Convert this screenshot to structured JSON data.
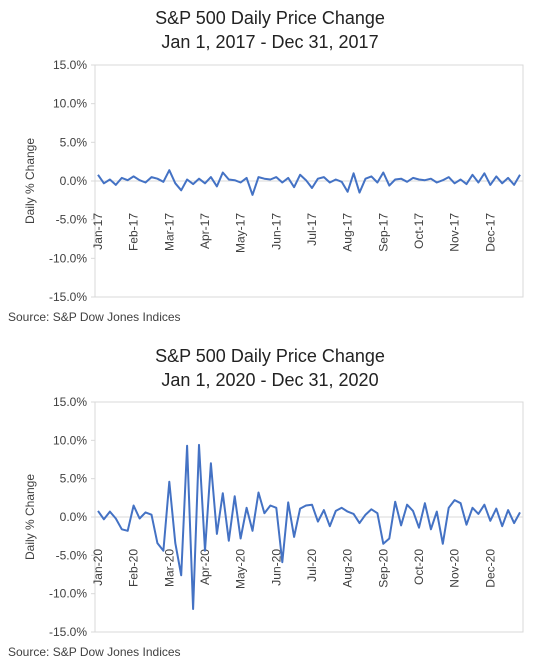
{
  "chart_data": [
    {
      "type": "line",
      "title": "S&P 500 Daily Price Change",
      "subtitle": "Jan 1, 2017 - Dec 31, 2017",
      "y_label": "Daily % Change",
      "source": "Source: S&P Dow Jones Indices",
      "categories": [
        "Jan-17",
        null,
        null,
        null,
        null,
        null,
        "Feb-17",
        null,
        null,
        null,
        null,
        null,
        "Mar-17",
        null,
        null,
        null,
        null,
        null,
        "Apr-17",
        null,
        null,
        null,
        null,
        null,
        "May-17",
        null,
        null,
        null,
        null,
        null,
        "Jun-17",
        null,
        null,
        null,
        null,
        null,
        "Jul-17",
        null,
        null,
        null,
        null,
        null,
        "Aug-17",
        null,
        null,
        null,
        null,
        null,
        "Sep-17",
        null,
        null,
        null,
        null,
        null,
        "Oct-17",
        null,
        null,
        null,
        null,
        null,
        "Nov-17",
        null,
        null,
        null,
        null,
        null,
        "Dec-17",
        null,
        null,
        null,
        null,
        null
      ],
      "series": [
        {
          "name": "Daily % Change",
          "color": "#4472c4",
          "values": [
            0.8,
            -0.3,
            0.2,
            -0.5,
            0.4,
            0.1,
            0.6,
            0.1,
            -0.2,
            0.5,
            0.3,
            -0.1,
            1.4,
            -0.3,
            -1.2,
            0.2,
            -0.4,
            0.3,
            -0.3,
            0.5,
            -0.7,
            1.1,
            0.2,
            0.1,
            -0.2,
            0.4,
            -1.8,
            0.5,
            0.3,
            0.2,
            0.5,
            -0.2,
            0.4,
            -0.8,
            0.8,
            0.1,
            -0.9,
            0.3,
            0.5,
            -0.2,
            0.2,
            -0.1,
            -1.4,
            1.0,
            -1.5,
            0.3,
            0.6,
            -0.2,
            1.1,
            -0.6,
            0.2,
            0.3,
            -0.1,
            0.4,
            0.2,
            0.1,
            0.3,
            -0.2,
            0.1,
            0.5,
            -0.3,
            0.2,
            -0.4,
            0.8,
            -0.2,
            1.0,
            -0.5,
            0.6,
            -0.3,
            0.4,
            -0.5,
            0.8
          ]
        }
      ],
      "ylim": [
        -15,
        15
      ],
      "yticks": [
        {
          "value": -15,
          "label": "-15.0%"
        },
        {
          "value": -10,
          "label": "-10.0%"
        },
        {
          "value": -5,
          "label": "-5.0%"
        },
        {
          "value": 0,
          "label": "0.0%"
        },
        {
          "value": 5,
          "label": "5.0%"
        },
        {
          "value": 10,
          "label": "10.0%"
        },
        {
          "value": 15,
          "label": "15.0%"
        }
      ]
    },
    {
      "type": "line",
      "title": "S&P 500 Daily Price Change",
      "subtitle": "Jan 1, 2020 - Dec 31, 2020",
      "y_label": "Daily % Change",
      "source": "Source: S&P Dow Jones Indices",
      "categories": [
        "Jan-20",
        null,
        null,
        null,
        null,
        null,
        "Feb-20",
        null,
        null,
        null,
        null,
        null,
        "Mar-20",
        null,
        null,
        null,
        null,
        null,
        "Apr-20",
        null,
        null,
        null,
        null,
        null,
        "May-20",
        null,
        null,
        null,
        null,
        null,
        "Jun-20",
        null,
        null,
        null,
        null,
        null,
        "Jul-20",
        null,
        null,
        null,
        null,
        null,
        "Aug-20",
        null,
        null,
        null,
        null,
        null,
        "Sep-20",
        null,
        null,
        null,
        null,
        null,
        "Oct-20",
        null,
        null,
        null,
        null,
        null,
        "Nov-20",
        null,
        null,
        null,
        null,
        null,
        "Dec-20",
        null,
        null,
        null,
        null,
        null
      ],
      "series": [
        {
          "name": "Daily % Change",
          "color": "#4472c4",
          "values": [
            0.8,
            -0.3,
            0.7,
            -0.2,
            -1.6,
            -1.8,
            1.5,
            -0.2,
            0.6,
            0.3,
            -3.4,
            -4.4,
            4.6,
            -3.4,
            -7.6,
            9.3,
            -12.0,
            9.4,
            -4.4,
            7.0,
            -2.2,
            3.1,
            -3.1,
            2.7,
            -2.8,
            1.2,
            -1.8,
            3.2,
            0.5,
            1.5,
            1.2,
            -5.9,
            1.9,
            -2.6,
            1.1,
            1.5,
            1.6,
            -0.6,
            0.9,
            -1.2,
            0.8,
            1.2,
            0.7,
            0.4,
            -0.8,
            0.3,
            1.0,
            0.5,
            -3.5,
            -2.8,
            2.0,
            -1.1,
            1.6,
            0.8,
            -1.4,
            1.8,
            -1.6,
            0.7,
            -3.5,
            1.2,
            2.2,
            1.8,
            -1.0,
            1.2,
            0.4,
            1.6,
            -0.5,
            1.1,
            -1.2,
            0.9,
            -0.8,
            0.6
          ]
        }
      ],
      "ylim": [
        -15,
        15
      ],
      "yticks": [
        {
          "value": -15,
          "label": "-15.0%"
        },
        {
          "value": -10,
          "label": "-10.0%"
        },
        {
          "value": -5,
          "label": "-5.0%"
        },
        {
          "value": 0,
          "label": "0.0%"
        },
        {
          "value": 5,
          "label": "5.0%"
        },
        {
          "value": 10,
          "label": "10.0%"
        },
        {
          "value": 15,
          "label": "15.0%"
        }
      ]
    }
  ]
}
